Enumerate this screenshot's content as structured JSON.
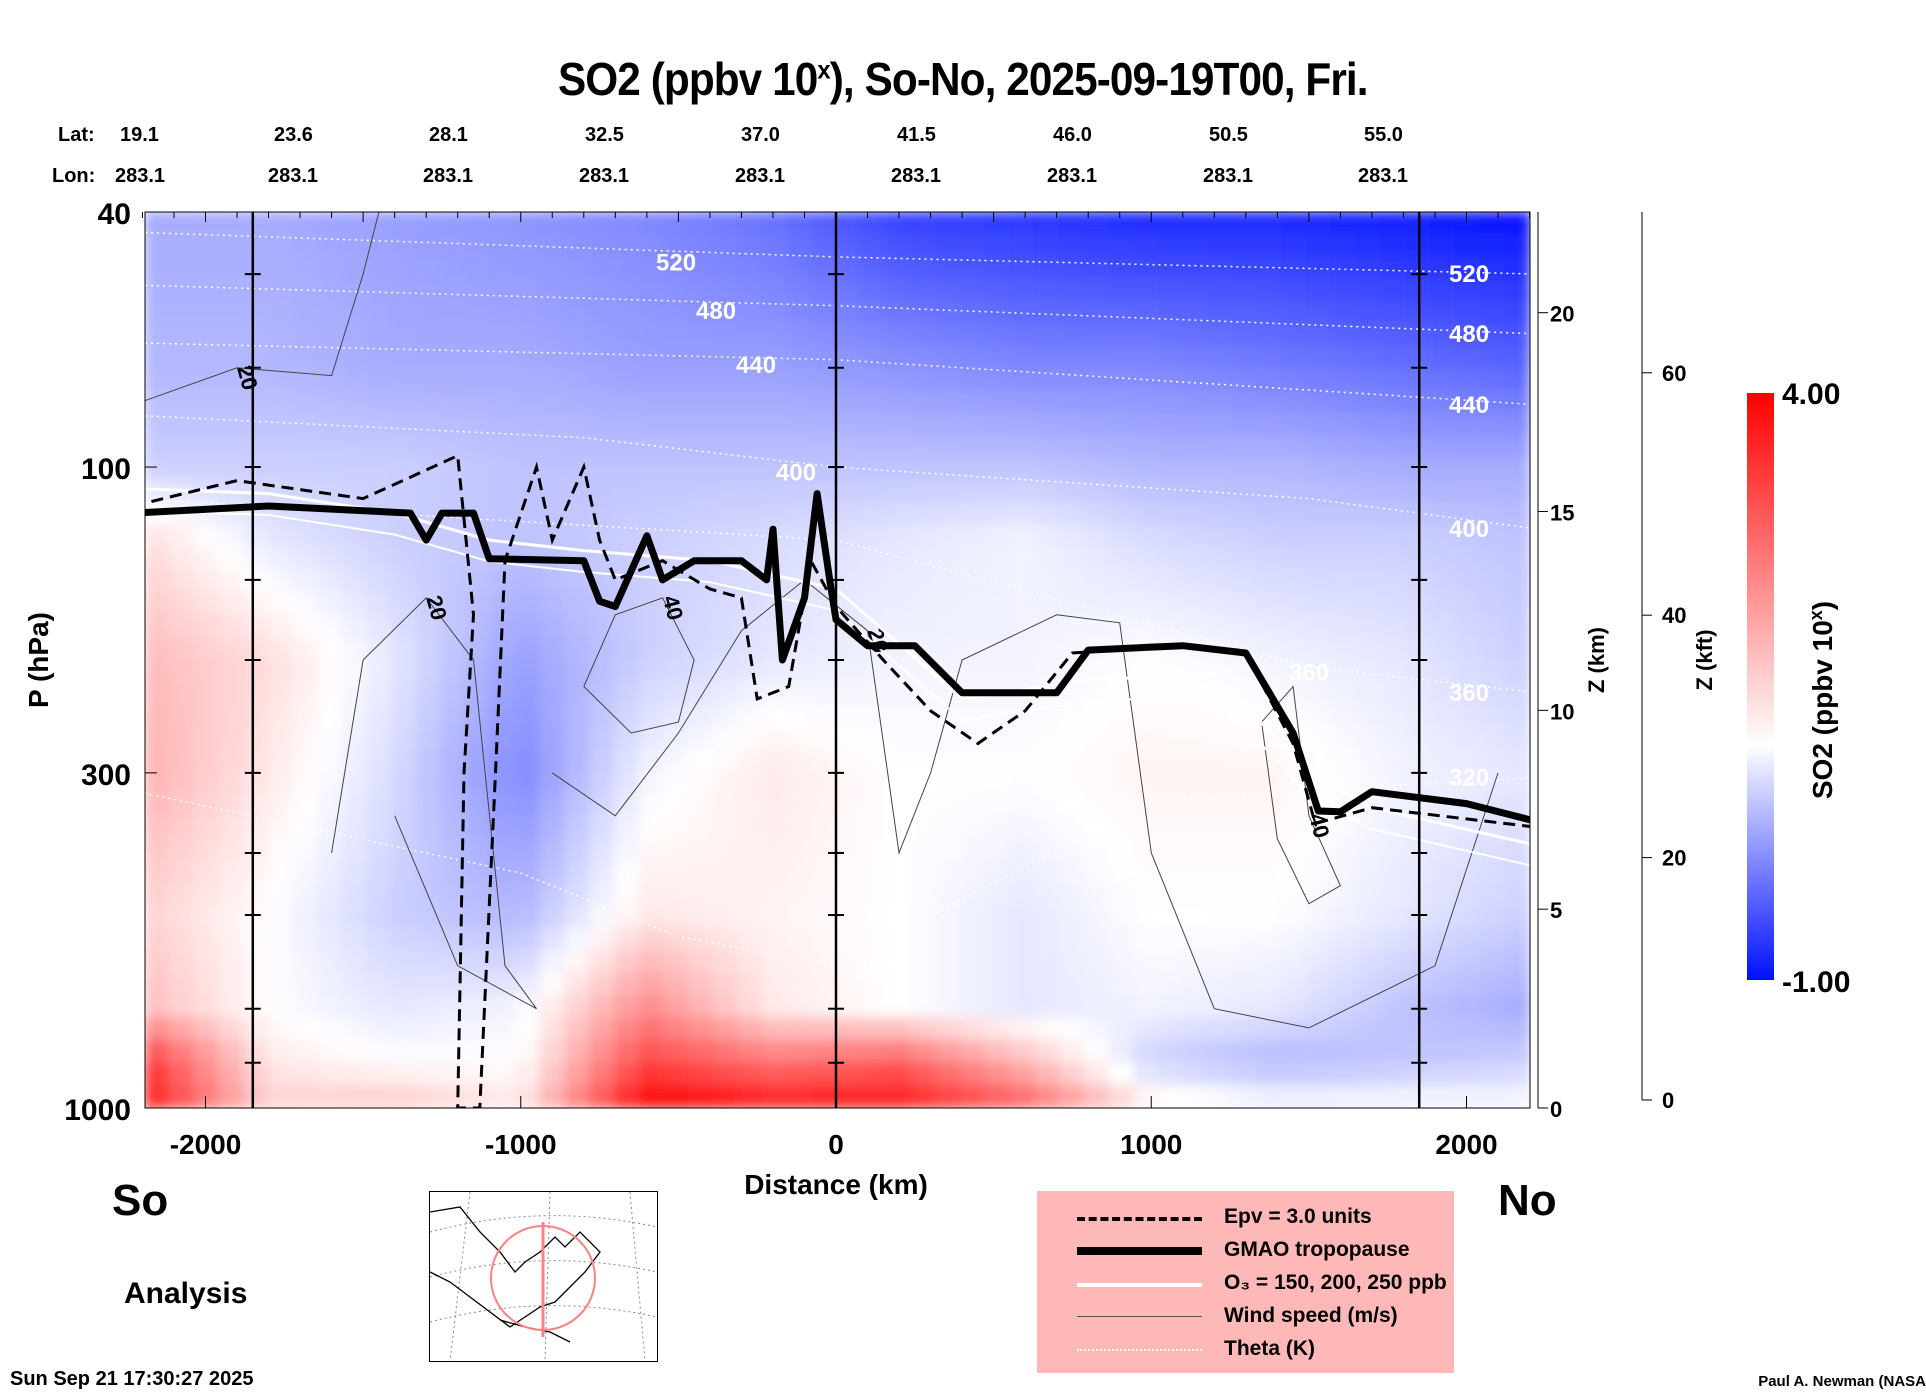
{
  "title": {
    "main": "SO2 (ppbv 10",
    "sup": "x",
    "rest": "), So-No, 2025-09-19T00, Fri."
  },
  "geo": {
    "lat_label": "Lat:",
    "lon_label": "Lon:",
    "lats": [
      "19.1",
      "23.6",
      "28.1",
      "32.5",
      "37.0",
      "41.5",
      "46.0",
      "50.5",
      "55.0"
    ],
    "lons": [
      "283.1",
      "283.1",
      "283.1",
      "283.1",
      "283.1",
      "283.1",
      "283.1",
      "283.1",
      "283.1"
    ]
  },
  "labels": {
    "south": "So",
    "north": "No",
    "analysis": "Analysis",
    "timestamp": "Sun Sep 21 17:30:27 2025",
    "credit": "Paul A. Newman (NASA"
  },
  "legend": [
    {
      "style": "dashed",
      "text": "Epv = 3.0 units"
    },
    {
      "style": "thick",
      "text": "GMAO tropopause"
    },
    {
      "style": "white",
      "text": "O₃ = 150, 200, 250 ppb"
    },
    {
      "style": "thin",
      "text": "Wind speed (m/s)"
    },
    {
      "style": "dotted",
      "text": "Theta (K)"
    }
  ],
  "colors": {
    "low": "#0010ff",
    "mid": "#ffffff",
    "high": "#ff0000",
    "legend_bg": "#ffb8b8"
  },
  "chart_data": {
    "type": "heatmap",
    "title": "SO2 (ppbv 10^x), So-No, 2025-09-19T00, Fri.",
    "xlabel": "Distance (km)",
    "ylabel": "P (hPa)",
    "y2label": "Z (km)",
    "y3label": "Z (kft)",
    "colorbar_label": "SO2 (ppbv 10x)",
    "colorbar_label_main": "SO2 (ppbv 10",
    "colorbar_label_sup": "x",
    "colorbar_label_end": ")",
    "xlim": [
      -2230,
      2230
    ],
    "ylim": [
      1000,
      40
    ],
    "clim": [
      -1.0,
      4.0
    ],
    "clim_labels": [
      "4.00",
      "-1.00"
    ],
    "xticks": [
      "-2000",
      "-1000",
      "0",
      "1000",
      "2000"
    ],
    "xtick_values": [
      -2000,
      -1000,
      0,
      1000,
      2000
    ],
    "yticks": [
      "40",
      "100",
      "300",
      "1000"
    ],
    "ytick_values": [
      40,
      100,
      300,
      1000
    ],
    "zkm_ticks": [
      "0",
      "5",
      "10",
      "15",
      "20"
    ],
    "zkm_values": [
      0,
      5,
      10,
      15,
      20
    ],
    "zkft_ticks": [
      "0",
      "20",
      "40",
      "60"
    ],
    "zkft_values": [
      0,
      20,
      40,
      60
    ],
    "grid_x": [
      -2200,
      -1800,
      -1400,
      -1000,
      -600,
      -200,
      200,
      600,
      1000,
      1400,
      1800,
      2200
    ],
    "grid_p": [
      40,
      70,
      100,
      130,
      200,
      300,
      500,
      700,
      850,
      1000
    ],
    "values": [
      [
        0.3,
        0.3,
        0.2,
        0.1,
        0.0,
        -0.2,
        -0.6,
        -0.7,
        -0.8,
        -0.8,
        -0.9,
        -1.0
      ],
      [
        0.4,
        0.4,
        0.3,
        0.3,
        0.2,
        0.2,
        0.1,
        0.0,
        0.0,
        -0.1,
        -0.2,
        -0.3
      ],
      [
        0.6,
        0.6,
        0.6,
        0.5,
        0.5,
        0.5,
        0.5,
        0.5,
        0.4,
        0.4,
        0.3,
        0.3
      ],
      [
        1.3,
        0.8,
        0.6,
        0.5,
        0.6,
        0.7,
        0.8,
        0.9,
        0.7,
        0.6,
        0.6,
        0.5
      ],
      [
        1.6,
        1.3,
        0.8,
        0.2,
        0.6,
        0.8,
        0.9,
        0.9,
        1.0,
        0.9,
        0.8,
        0.6
      ],
      [
        1.7,
        1.2,
        0.7,
        0.0,
        0.9,
        1.2,
        1.0,
        1.0,
        1.1,
        1.1,
        0.9,
        0.8
      ],
      [
        1.4,
        1.0,
        0.6,
        0.4,
        1.2,
        1.1,
        1.0,
        0.8,
        1.0,
        1.0,
        0.8,
        0.6
      ],
      [
        1.6,
        1.0,
        0.8,
        0.9,
        2.0,
        1.2,
        1.0,
        0.8,
        0.9,
        0.8,
        0.5,
        0.3
      ],
      [
        2.8,
        1.2,
        1.0,
        1.0,
        2.6,
        2.2,
        2.4,
        1.6,
        0.6,
        0.4,
        0.5,
        0.6
      ],
      [
        3.0,
        1.4,
        1.5,
        1.2,
        3.2,
        3.0,
        3.0,
        2.4,
        1.2,
        1.0,
        1.0,
        1.0
      ]
    ],
    "section_lines_km": [
      -1850,
      0,
      1850
    ],
    "tropopause": [
      [
        -2230,
        118
      ],
      [
        -1800,
        115
      ],
      [
        -1350,
        118
      ],
      [
        -1300,
        130
      ],
      [
        -1250,
        118
      ],
      [
        -1150,
        118
      ],
      [
        -1100,
        139
      ],
      [
        -800,
        140
      ],
      [
        -750,
        162
      ],
      [
        -700,
        165
      ],
      [
        -600,
        128
      ],
      [
        -550,
        150
      ],
      [
        -450,
        140
      ],
      [
        -300,
        140
      ],
      [
        -220,
        150
      ],
      [
        -200,
        125
      ],
      [
        -170,
        200
      ],
      [
        -100,
        160
      ],
      [
        -60,
        110
      ],
      [
        -20,
        150
      ],
      [
        0,
        173
      ],
      [
        100,
        190
      ],
      [
        250,
        190
      ],
      [
        400,
        225
      ],
      [
        700,
        225
      ],
      [
        800,
        193
      ],
      [
        1100,
        190
      ],
      [
        1300,
        195
      ],
      [
        1450,
        260
      ],
      [
        1530,
        344
      ],
      [
        1600,
        345
      ],
      [
        1700,
        321
      ],
      [
        2000,
        335
      ],
      [
        2230,
        358
      ]
    ],
    "epv": [
      [
        -2230,
        115
      ],
      [
        -1900,
        105
      ],
      [
        -1500,
        112
      ],
      [
        -1200,
        96
      ],
      [
        -1150,
        170
      ],
      [
        -1180,
        300
      ],
      [
        -1200,
        1000
      ],
      [
        -1130,
        1000
      ],
      [
        -1080,
        300
      ],
      [
        -1050,
        140
      ],
      [
        -950,
        100
      ],
      [
        -900,
        130
      ],
      [
        -800,
        100
      ],
      [
        -750,
        130
      ],
      [
        -700,
        150
      ],
      [
        -550,
        140
      ],
      [
        -400,
        155
      ],
      [
        -300,
        160
      ],
      [
        -250,
        230
      ],
      [
        -150,
        220
      ],
      [
        -80,
        140
      ],
      [
        0,
        165
      ],
      [
        150,
        200
      ],
      [
        300,
        240
      ],
      [
        450,
        270
      ],
      [
        600,
        240
      ],
      [
        750,
        195
      ],
      [
        1100,
        190
      ],
      [
        1300,
        195
      ],
      [
        1450,
        270
      ],
      [
        1520,
        360
      ],
      [
        1700,
        340
      ],
      [
        2230,
        365
      ]
    ],
    "o3": [
      [
        -2230,
        108
      ],
      [
        -1800,
        110
      ],
      [
        -1400,
        118
      ],
      [
        -1100,
        130
      ],
      [
        -800,
        135
      ],
      [
        -400,
        140
      ],
      [
        0,
        155
      ],
      [
        400,
        230
      ],
      [
        800,
        215
      ],
      [
        1200,
        210
      ],
      [
        1500,
        300
      ],
      [
        1700,
        340
      ],
      [
        2230,
        390
      ]
    ],
    "theta": [
      {
        "label": "520",
        "pts": [
          [
            -2230,
            43
          ],
          [
            0,
            47
          ],
          [
            2230,
            50
          ]
        ]
      },
      {
        "label": "480",
        "pts": [
          [
            -2230,
            52
          ],
          [
            0,
            56
          ],
          [
            2230,
            62
          ]
        ]
      },
      {
        "label": "440",
        "pts": [
          [
            -2230,
            64
          ],
          [
            0,
            68
          ],
          [
            2230,
            80
          ]
        ]
      },
      {
        "label": "400",
        "pts": [
          [
            -2230,
            83
          ],
          [
            -800,
            90
          ],
          [
            0,
            100
          ],
          [
            1500,
            112
          ],
          [
            2230,
            125
          ]
        ]
      },
      {
        "label": "360",
        "pts": [
          [
            -2230,
            112
          ],
          [
            0,
            130
          ],
          [
            1500,
            205
          ],
          [
            2230,
            225
          ]
        ]
      },
      {
        "label": "320",
        "pts": [
          [
            -2230,
            320
          ],
          [
            -1000,
            430
          ],
          [
            -500,
            540
          ],
          [
            0,
            600
          ],
          [
            1000,
            330
          ],
          [
            2230,
            305
          ]
        ]
      }
    ],
    "wind": [
      {
        "label": "20",
        "pts": [
          [
            -2230,
            80
          ],
          [
            -1900,
            70
          ],
          [
            -1600,
            72
          ],
          [
            -1500,
            50
          ],
          [
            -1450,
            40
          ]
        ]
      },
      {
        "label": "20",
        "pts": [
          [
            -900,
            300
          ],
          [
            -700,
            350
          ],
          [
            -500,
            260
          ],
          [
            -300,
            180
          ],
          [
            -100,
            150
          ],
          [
            100,
            180
          ],
          [
            200,
            400
          ],
          [
            300,
            300
          ],
          [
            400,
            200
          ],
          [
            700,
            170
          ],
          [
            900,
            175
          ],
          [
            1000,
            400
          ],
          [
            1200,
            700
          ],
          [
            1500,
            750
          ],
          [
            1900,
            600
          ],
          [
            2100,
            300
          ]
        ]
      },
      {
        "label": "40",
        "pts": [
          [
            -800,
            220
          ],
          [
            -700,
            170
          ],
          [
            -550,
            160
          ],
          [
            -450,
            200
          ],
          [
            -500,
            250
          ],
          [
            -650,
            260
          ],
          [
            -800,
            220
          ]
        ]
      },
      {
        "label": "40",
        "pts": [
          [
            1350,
            250
          ],
          [
            1450,
            220
          ],
          [
            1500,
            350
          ],
          [
            1600,
            450
          ],
          [
            1500,
            480
          ],
          [
            1400,
            380
          ],
          [
            1350,
            250
          ]
        ]
      },
      {
        "label": "20",
        "pts": [
          [
            -1600,
            400
          ],
          [
            -1500,
            200
          ],
          [
            -1300,
            160
          ],
          [
            -1150,
            200
          ],
          [
            -1050,
            600
          ],
          [
            -950,
            700
          ],
          [
            -1200,
            600
          ],
          [
            -1400,
            350
          ]
        ]
      }
    ]
  }
}
